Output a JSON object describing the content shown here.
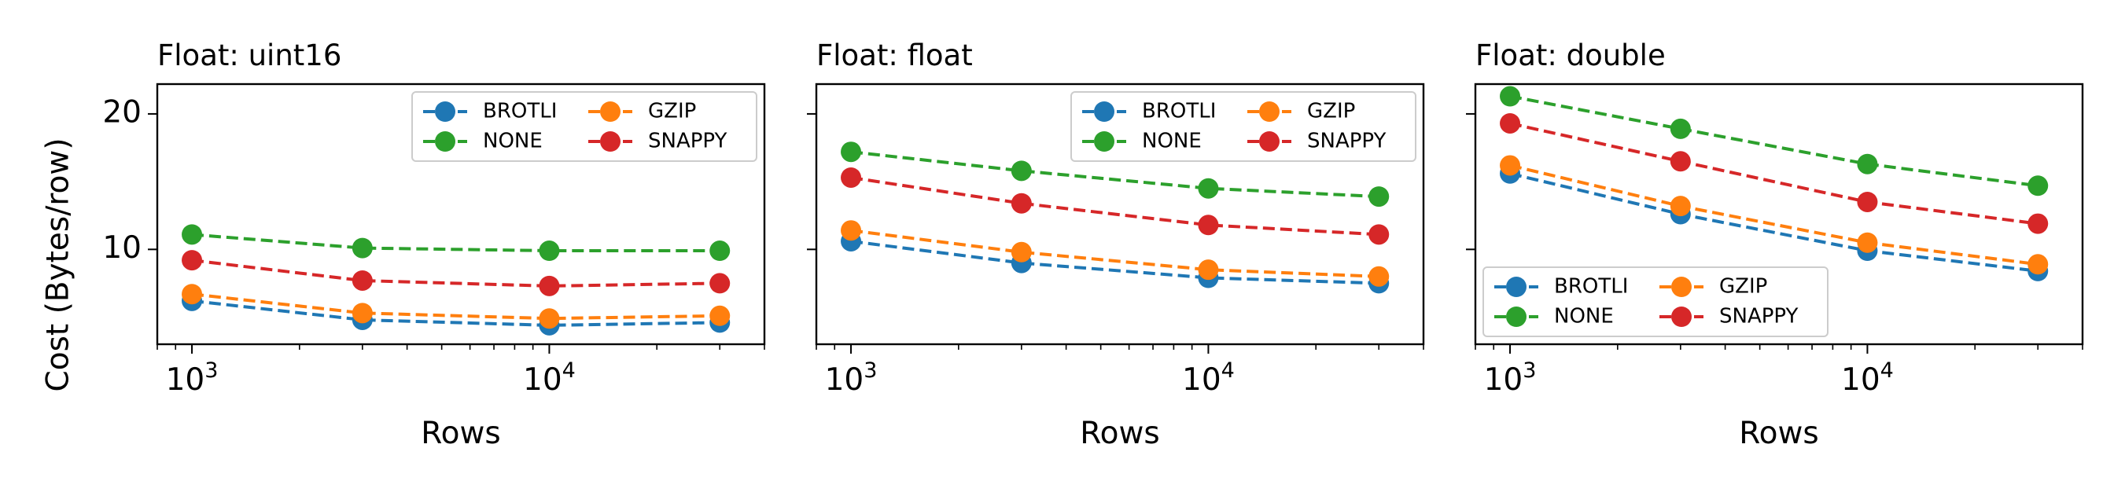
{
  "figure": {
    "ylabel": "Cost (Bytes/row)",
    "xlabel": "Rows",
    "colors": {
      "BROTLI": "#1f77b4",
      "GZIP": "#ff7f0e",
      "NONE": "#2ca02c",
      "SNAPPY": "#d62728"
    }
  },
  "chart_data": [
    {
      "type": "line",
      "title": "Float: uint16",
      "xlabel": "Rows",
      "ylabel": "Cost (Bytes/row)",
      "xscale": "log",
      "xlim": [
        800,
        40000
      ],
      "ylim": [
        3,
        22.2
      ],
      "xticks": [
        1000,
        10000
      ],
      "xtick_labels": [
        [
          "10",
          "3"
        ],
        [
          "10",
          "4"
        ]
      ],
      "yticks": [
        10,
        20
      ],
      "ytick_labels": [
        "10",
        "20"
      ],
      "x": [
        1000,
        3000,
        10000,
        30000
      ],
      "legend": {
        "position": "top-right",
        "columns": 2
      },
      "series": [
        {
          "name": "BROTLI",
          "values": [
            6.2,
            4.8,
            4.4,
            4.6
          ]
        },
        {
          "name": "GZIP",
          "values": [
            6.7,
            5.3,
            4.9,
            5.1
          ]
        },
        {
          "name": "NONE",
          "values": [
            11.1,
            10.1,
            9.9,
            9.9
          ]
        },
        {
          "name": "SNAPPY",
          "values": [
            9.2,
            7.7,
            7.3,
            7.5
          ]
        }
      ]
    },
    {
      "type": "line",
      "title": "Float: float",
      "xlabel": "Rows",
      "ylabel": "",
      "xscale": "log",
      "xlim": [
        800,
        40000
      ],
      "ylim": [
        3,
        22.2
      ],
      "xticks": [
        1000,
        10000
      ],
      "xtick_labels": [
        [
          "10",
          "3"
        ],
        [
          "10",
          "4"
        ]
      ],
      "yticks": [
        10,
        20
      ],
      "ytick_labels": [],
      "x": [
        1000,
        3000,
        10000,
        30000
      ],
      "legend": {
        "position": "top-right",
        "columns": 2
      },
      "series": [
        {
          "name": "BROTLI",
          "values": [
            10.6,
            9.0,
            7.9,
            7.5
          ]
        },
        {
          "name": "GZIP",
          "values": [
            11.4,
            9.8,
            8.5,
            8.0
          ]
        },
        {
          "name": "NONE",
          "values": [
            17.2,
            15.8,
            14.5,
            13.9
          ]
        },
        {
          "name": "SNAPPY",
          "values": [
            15.3,
            13.4,
            11.8,
            11.1
          ]
        }
      ]
    },
    {
      "type": "line",
      "title": "Float: double",
      "xlabel": "Rows",
      "ylabel": "",
      "xscale": "log",
      "xlim": [
        800,
        40000
      ],
      "ylim": [
        3,
        22.2
      ],
      "xticks": [
        1000,
        10000
      ],
      "xtick_labels": [
        [
          "10",
          "3"
        ],
        [
          "10",
          "4"
        ]
      ],
      "yticks": [
        10,
        20
      ],
      "ytick_labels": [],
      "x": [
        1000,
        3000,
        10000,
        30000
      ],
      "legend": {
        "position": "bottom-left",
        "columns": 2
      },
      "series": [
        {
          "name": "BROTLI",
          "values": [
            15.6,
            12.6,
            9.9,
            8.4
          ]
        },
        {
          "name": "GZIP",
          "values": [
            16.2,
            13.2,
            10.5,
            8.9
          ]
        },
        {
          "name": "NONE",
          "values": [
            21.3,
            18.9,
            16.3,
            14.7
          ]
        },
        {
          "name": "SNAPPY",
          "values": [
            19.3,
            16.5,
            13.5,
            11.9
          ]
        }
      ]
    }
  ]
}
